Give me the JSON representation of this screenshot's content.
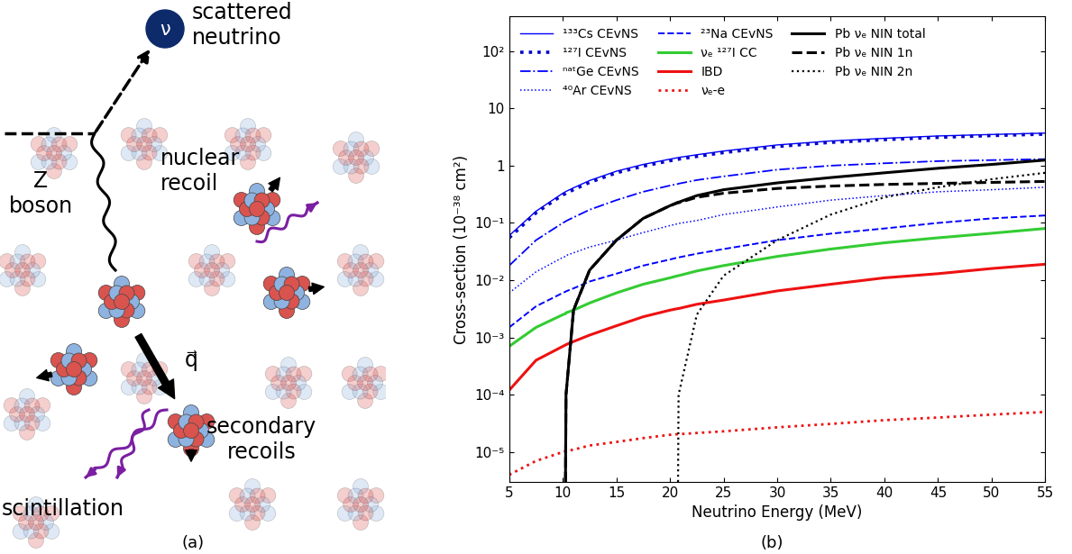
{
  "diagram": {
    "neutrino_symbol": "ν",
    "scattered_neutrino": "scattered\nneutrino",
    "z_boson": "Z\nboson",
    "nuclear_recoil": "nuclear\nrecoil",
    "momentum": "q⃗",
    "secondary_recoils": "secondary\nrecoils",
    "scintillation": "scintillation"
  },
  "panel_labels": [
    "(a)",
    "(b)"
  ],
  "chart_data": {
    "type": "line",
    "log": "y",
    "legend": "upper left",
    "x_label": "Neutrino Energy (MeV)",
    "y_label": "Cross-section (10⁻³⁸ cm²)",
    "xlim": [
      5,
      55
    ],
    "xticks": [
      5,
      10,
      15,
      20,
      25,
      30,
      35,
      40,
      45,
      50,
      55
    ],
    "ylim": [
      3e-06,
      400
    ],
    "yticks": [
      {
        "value": 1e-05,
        "label": "10⁻⁵"
      },
      {
        "value": 0.0001,
        "label": "10⁻⁴"
      },
      {
        "value": 0.001,
        "label": "10⁻³"
      },
      {
        "value": 0.01,
        "label": "10⁻²"
      },
      {
        "value": 0.1,
        "label": "10⁻¹"
      },
      1,
      10,
      {
        "value": 100,
        "label": "10²"
      }
    ],
    "x": [
      5,
      7.5,
      10,
      10.25,
      10.3,
      11,
      12.5,
      15,
      17.5,
      20,
      20.75,
      20.8,
      22.5,
      25,
      30,
      35,
      40,
      45,
      50,
      55
    ],
    "series": [
      {
        "name": "¹³³Cs CEvNS",
        "color": "#0000ff",
        "line_style": "solid",
        "values": [
          0.06,
          0.16,
          0.33,
          0.35,
          0.355,
          0.41,
          0.55,
          0.8,
          1.05,
          1.3,
          1.38,
          1.39,
          1.55,
          1.8,
          2.3,
          2.7,
          3.0,
          3.3,
          3.5,
          3.7
        ]
      },
      {
        "name": "¹²⁷I CEvNS",
        "color": "#0000cc",
        "line_style": "dotted",
        "values": [
          0.055,
          0.15,
          0.31,
          0.325,
          0.33,
          0.38,
          0.51,
          0.75,
          0.98,
          1.22,
          1.29,
          1.3,
          1.45,
          1.69,
          2.16,
          2.55,
          2.85,
          3.12,
          3.35,
          3.55
        ]
      },
      {
        "name": "ⁿᵃᵗGe CEvNS",
        "color": "#0000ff",
        "line_style": "dashdot",
        "values": [
          0.018,
          0.05,
          0.1,
          0.106,
          0.108,
          0.125,
          0.17,
          0.25,
          0.35,
          0.45,
          0.48,
          0.485,
          0.56,
          0.65,
          0.85,
          1.0,
          1.1,
          1.2,
          1.25,
          1.3
        ]
      },
      {
        "name": "⁴⁰Ar CEvNS",
        "color": "#0000ff",
        "line_style": "dotted",
        "values": [
          0.006,
          0.014,
          0.025,
          0.026,
          0.027,
          0.03,
          0.038,
          0.05,
          0.068,
          0.09,
          0.097,
          0.098,
          0.11,
          0.14,
          0.19,
          0.25,
          0.3,
          0.35,
          0.38,
          0.42
        ]
      },
      {
        "name": "²³Na CEvNS",
        "color": "#0000ff",
        "line_style": "dashed",
        "values": [
          0.0015,
          0.0035,
          0.006,
          0.0063,
          0.0064,
          0.0072,
          0.0095,
          0.013,
          0.018,
          0.023,
          0.025,
          0.025,
          0.029,
          0.035,
          0.05,
          0.065,
          0.08,
          0.1,
          0.12,
          0.135
        ]
      },
      {
        "name": "νₑ ¹²⁷I CC",
        "color": "#33cc33",
        "line_style": "solid",
        "values": [
          0.0007,
          0.0015,
          0.0025,
          0.0026,
          0.0027,
          0.003,
          0.004,
          0.006,
          0.0085,
          0.011,
          0.012,
          0.012,
          0.0145,
          0.018,
          0.026,
          0.035,
          0.045,
          0.055,
          0.066,
          0.08
        ]
      },
      {
        "name": "IBD",
        "color": "#ee1111",
        "line_style": "solid",
        "values": [
          0.00012,
          0.0004,
          0.0007,
          0.00074,
          0.00075,
          0.00085,
          0.0011,
          0.0016,
          0.0023,
          0.003,
          0.0032,
          0.0032,
          0.0038,
          0.0045,
          0.0065,
          0.0085,
          0.011,
          0.013,
          0.016,
          0.019
        ]
      },
      {
        "name": "νₑ-e",
        "color": "#ee1111",
        "line_style": "dotted",
        "values": [
          4e-06,
          7e-06,
          1e-05,
          1.03e-05,
          1.04e-05,
          1.1e-05,
          1.3e-05,
          1.5e-05,
          1.75e-05,
          2e-05,
          2.05e-05,
          2.05e-05,
          2.15e-05,
          2.3e-05,
          2.7e-05,
          3.1e-05,
          3.6e-05,
          4e-05,
          4.5e-05,
          5e-05
        ]
      },
      {
        "name": "Pb νₑ NIN total",
        "color": "#000000",
        "line_style": "solid",
        "values": [
          null,
          null,
          null,
          3e-06,
          0.0001,
          0.003,
          0.015,
          0.05,
          0.12,
          0.2,
          0.23,
          0.23,
          0.3,
          0.38,
          0.5,
          0.62,
          0.75,
          0.9,
          1.05,
          1.25
        ]
      },
      {
        "name": "Pb νₑ NIN 1n",
        "color": "#000000",
        "line_style": "dashed",
        "values": [
          null,
          null,
          null,
          3e-06,
          0.0001,
          0.003,
          0.015,
          0.05,
          0.12,
          0.2,
          0.225,
          0.225,
          0.28,
          0.33,
          0.4,
          0.44,
          0.47,
          0.49,
          0.51,
          0.53
        ]
      },
      {
        "name": "Pb νₑ NIN 2n",
        "color": "#000000",
        "line_style": "dotted",
        "values": [
          null,
          null,
          null,
          null,
          null,
          null,
          null,
          null,
          null,
          null,
          3e-06,
          0.0001,
          0.0025,
          0.012,
          0.05,
          0.14,
          0.28,
          0.42,
          0.58,
          0.75
        ]
      }
    ]
  }
}
